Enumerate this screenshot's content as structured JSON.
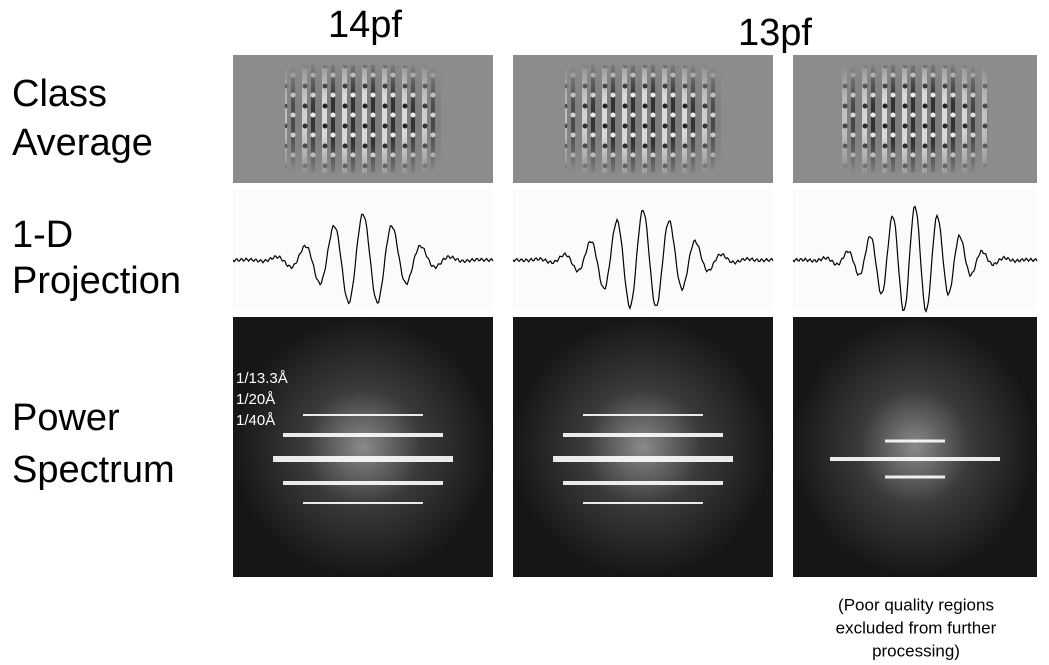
{
  "columns": [
    "14pf",
    "13pf"
  ],
  "rows": [
    [
      "Class",
      "Average"
    ],
    [
      "1-D",
      "Projection"
    ],
    [
      "Power",
      "Spectrum"
    ]
  ],
  "spectrum_labels": [
    "1/13.3Å",
    "1/20Å",
    "1/40Å"
  ],
  "note": [
    "(Poor quality regions",
    "excluded from further",
    "processing)"
  ]
}
